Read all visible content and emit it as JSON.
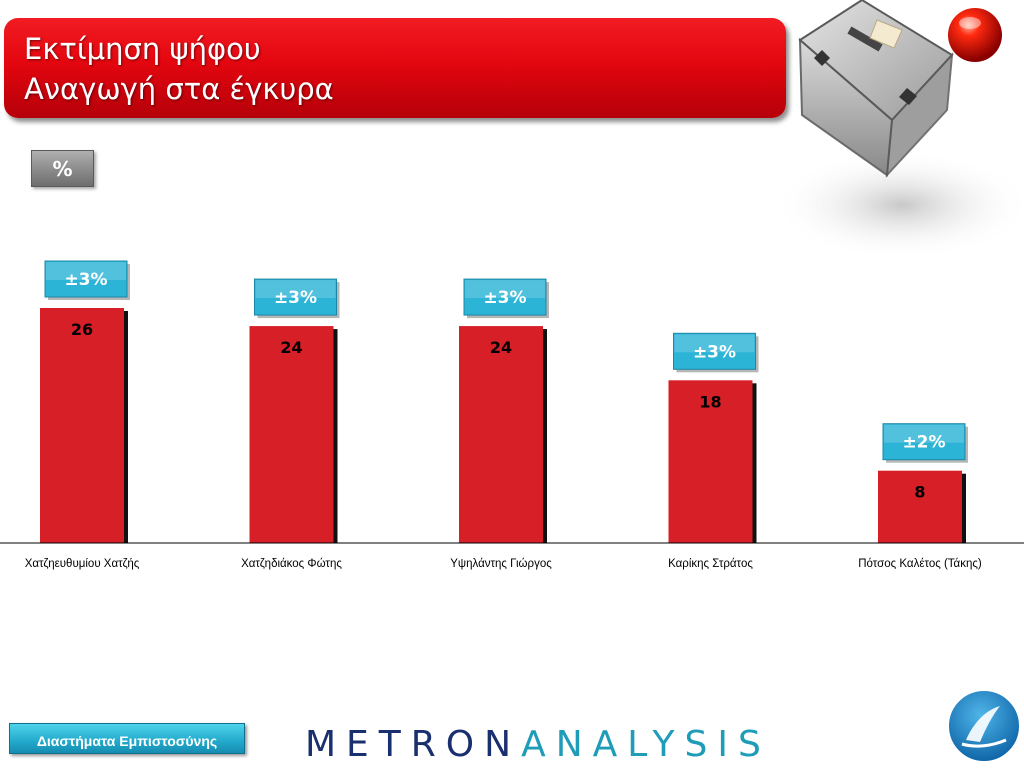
{
  "title": {
    "line1": "Εκτίμηση ψήφου",
    "line2": "Αναγωγή στα έγκυρα"
  },
  "unit_badge": "%",
  "colors": {
    "bar": "#d71f28",
    "bar_shadow": "#111111",
    "error_badge": "#2bb4d6",
    "title_banner": "#e3060f",
    "logo_primary": "#1a2f6e",
    "logo_accent": "#1e9cb8"
  },
  "icons": [
    "ballot-box-icon",
    "red-orb-icon",
    "emblem-icon"
  ],
  "chart_data": {
    "type": "bar",
    "categories": [
      "Χατζηευθυμίου Χατζής",
      "Χατζηδιάκος Φώτης",
      "Υψηλάντης Γιώργος",
      "Καρίκης Στράτος",
      "Πότσος Καλέτος (Τάκης)"
    ],
    "values": [
      26,
      24,
      24,
      18,
      8
    ],
    "error_margins": [
      "±3%",
      "±3%",
      "±3%",
      "±3%",
      "±2%"
    ],
    "ylim": [
      0,
      26
    ],
    "grid": false,
    "legend": "none"
  },
  "footer": {
    "ci_button": "Διαστήματα Εμπιστοσύνης",
    "logo_part1": "METRON",
    "logo_part2": "ANALYSIS"
  }
}
